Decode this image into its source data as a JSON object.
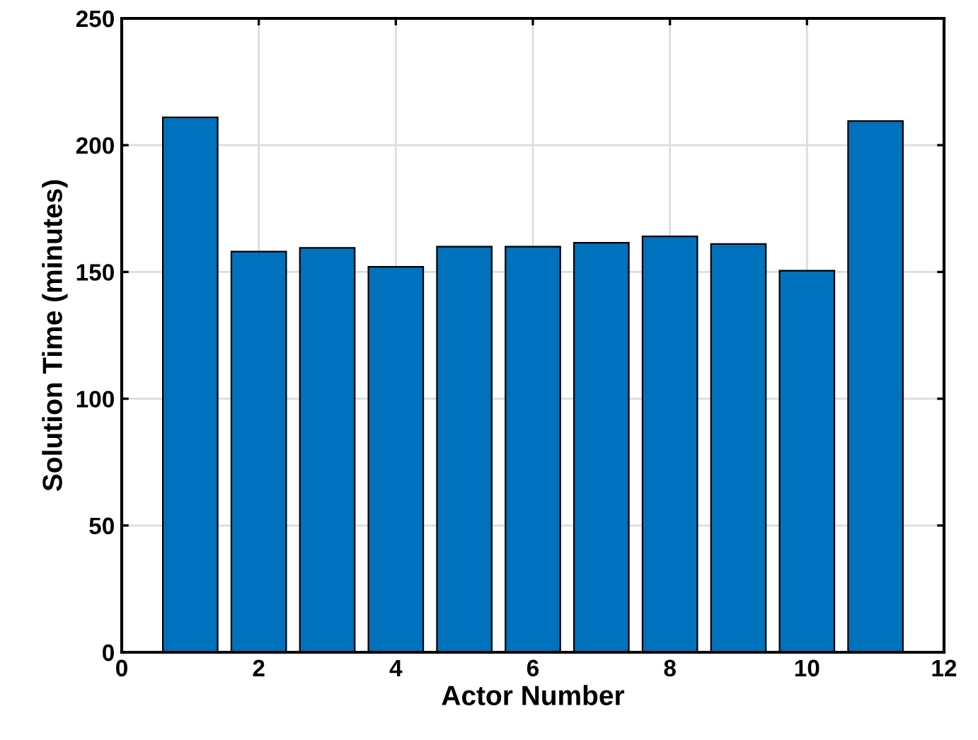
{
  "chart_data": {
    "type": "bar",
    "xlabel": "Actor Number",
    "ylabel": "Solution Time (minutes)",
    "x": [
      1,
      2,
      3,
      4,
      5,
      6,
      7,
      8,
      9,
      10,
      11
    ],
    "values": [
      211,
      158,
      159.5,
      152,
      160,
      160,
      161.5,
      164,
      161,
      150.5,
      209.5
    ],
    "color": "#0072bd",
    "xlim": [
      0,
      12
    ],
    "xticks": [
      0,
      2,
      4,
      6,
      8,
      10,
      12
    ],
    "ylim": [
      0,
      250
    ],
    "yticks": [
      0,
      50,
      100,
      150,
      200,
      250
    ],
    "grid": true
  }
}
